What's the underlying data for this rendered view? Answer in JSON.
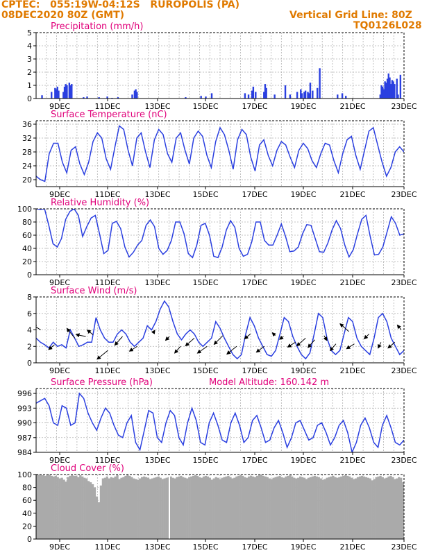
{
  "header": {
    "line1_left": "CPTEC:   055:19W-04:12S   RUROPOLIS (PA)",
    "line2_left": "08DEC2020 80Z (GMT)",
    "line1_right": "Vertical Grid Line: 80Z",
    "line2_right": "TQ0126L028"
  },
  "colors": {
    "header": "#e07a00",
    "title": "#e0007a",
    "series": "#2a3fe0",
    "cloud": "#aaaaaa",
    "grid": "#b0b0b0"
  },
  "x_ticks": [
    "9DEC",
    "11DEC",
    "13DEC",
    "15DEC",
    "17DEC",
    "19DEC",
    "21DEC",
    "23DEC"
  ],
  "chart_data": [
    {
      "id": "precip",
      "type": "bar",
      "title": "Precipitation (mm/h)",
      "ylim": [
        0,
        5
      ],
      "yticks": [
        "0",
        "1",
        "2",
        "3",
        "4",
        "5"
      ],
      "x": [
        [
          0.5,
          0.25
        ],
        [
          1.3,
          0.5
        ],
        [
          1.6,
          0.8
        ],
        [
          1.7,
          0.7
        ],
        [
          1.8,
          0.9
        ],
        [
          1.9,
          0.6
        ],
        [
          2.3,
          0.5
        ],
        [
          2.4,
          0.9
        ],
        [
          2.5,
          1.1
        ],
        [
          2.6,
          1.0
        ],
        [
          2.8,
          1.2
        ],
        [
          2.9,
          1.0
        ],
        [
          3.0,
          1.1
        ],
        [
          4.0,
          0.1
        ],
        [
          4.3,
          0.15
        ],
        [
          5.3,
          0.1
        ],
        [
          6.0,
          0.15
        ],
        [
          6.4,
          0.05
        ],
        [
          6.9,
          0.1
        ],
        [
          8.1,
          0.3
        ],
        [
          8.3,
          0.6
        ],
        [
          8.4,
          0.7
        ],
        [
          8.5,
          0.5
        ],
        [
          12.6,
          0.1
        ],
        [
          13.9,
          0.2
        ],
        [
          14.3,
          0.15
        ],
        [
          14.8,
          0.4
        ],
        [
          17.6,
          0.4
        ],
        [
          17.9,
          0.3
        ],
        [
          18.2,
          0.6
        ],
        [
          18.3,
          0.9
        ],
        [
          18.5,
          0.5
        ],
        [
          19.2,
          0.5
        ],
        [
          19.3,
          1.1
        ],
        [
          19.4,
          0.8
        ],
        [
          20.1,
          0.3
        ],
        [
          21.0,
          1.0
        ],
        [
          21.4,
          0.3
        ],
        [
          22.0,
          0.5
        ],
        [
          22.3,
          0.7
        ],
        [
          22.4,
          0.4
        ],
        [
          22.6,
          0.5
        ],
        [
          22.7,
          0.6
        ],
        [
          22.9,
          0.5
        ],
        [
          23.0,
          0.4
        ],
        [
          23.1,
          1.2
        ],
        [
          23.3,
          0.6
        ],
        [
          23.7,
          0.8
        ],
        [
          23.9,
          2.3
        ],
        [
          25.4,
          0.3
        ],
        [
          25.8,
          0.4
        ],
        [
          26.1,
          0.2
        ],
        [
          29.0,
          0.3
        ],
        [
          29.1,
          1.0
        ],
        [
          29.2,
          0.9
        ],
        [
          29.3,
          0.7
        ],
        [
          29.4,
          1.3
        ],
        [
          29.5,
          1.2
        ],
        [
          29.6,
          1.5
        ],
        [
          29.7,
          1.9
        ],
        [
          29.8,
          1.6
        ],
        [
          29.9,
          1.1
        ],
        [
          30.0,
          1.4
        ],
        [
          30.1,
          1.3
        ],
        [
          30.2,
          1.1
        ],
        [
          30.4,
          1.5
        ],
        [
          30.5,
          0.3
        ],
        [
          30.7,
          1.8
        ]
      ]
    },
    {
      "id": "temp",
      "type": "line",
      "title": "Surface Temperature (nC)",
      "ylim": [
        18,
        37
      ],
      "yticks": [
        "20",
        "24",
        "28",
        "32",
        "36"
      ],
      "tickvals": [
        20,
        24,
        28,
        32,
        36
      ],
      "values": [
        21.0,
        20.0,
        19.5,
        27.5,
        30.5,
        30.5,
        25.0,
        22.0,
        28.5,
        29.5,
        24.5,
        21.5,
        25.0,
        31.0,
        33.5,
        32.0,
        26.0,
        23.0,
        29.5,
        35.5,
        34.5,
        28.5,
        24.0,
        32.0,
        33.5,
        28.0,
        23.5,
        31.5,
        34.5,
        33.0,
        27.5,
        25.0,
        32.0,
        33.5,
        28.5,
        24.5,
        32.0,
        34.0,
        32.5,
        27.0,
        23.5,
        31.0,
        35.0,
        33.0,
        28.5,
        23.0,
        31.5,
        34.5,
        33.0,
        26.5,
        22.5,
        30.0,
        31.5,
        27.0,
        24.0,
        28.5,
        31.0,
        30.0,
        26.5,
        23.5,
        28.5,
        30.5,
        29.0,
        25.5,
        23.5,
        27.5,
        30.5,
        30.0,
        25.5,
        22.0,
        27.5,
        31.5,
        32.5,
        27.0,
        23.0,
        28.5,
        34.0,
        35.0,
        30.0,
        25.0,
        21.0,
        23.5,
        28.0,
        29.5,
        28.0
      ]
    },
    {
      "id": "rh",
      "type": "line",
      "title": "Relative Humidity (%)",
      "ylim": [
        0,
        100
      ],
      "yticks": [
        "0",
        "20",
        "40",
        "60",
        "80",
        "100"
      ],
      "tickvals": [
        0,
        20,
        40,
        60,
        80,
        100
      ],
      "values": [
        100,
        99,
        100,
        75,
        47,
        42,
        55,
        84,
        96,
        100,
        90,
        58,
        73,
        86,
        90,
        62,
        32,
        37,
        78,
        81,
        70,
        42,
        27,
        34,
        45,
        52,
        75,
        83,
        73,
        40,
        31,
        37,
        52,
        80,
        80,
        62,
        32,
        26,
        45,
        75,
        78,
        60,
        28,
        26,
        42,
        68,
        82,
        72,
        40,
        28,
        31,
        50,
        80,
        80,
        52,
        45,
        45,
        60,
        77,
        58,
        35,
        36,
        42,
        62,
        76,
        75,
        55,
        35,
        34,
        48,
        68,
        82,
        70,
        45,
        27,
        38,
        62,
        84,
        90,
        58,
        30,
        31,
        42,
        65,
        88,
        78,
        60,
        62
      ]
    },
    {
      "id": "wind",
      "type": "line",
      "title": "Surface Wind (m/s)",
      "ylim": [
        0,
        8
      ],
      "yticks": [
        "0",
        "2",
        "4",
        "6",
        "8"
      ],
      "tickvals": [
        0,
        2,
        4,
        6,
        8
      ],
      "values": [
        3.0,
        2.5,
        2.2,
        1.8,
        2.5,
        2.0,
        2.2,
        1.8,
        4.0,
        3.0,
        2.0,
        2.2,
        2.5,
        2.5,
        5.5,
        4.0,
        3.0,
        2.5,
        2.5,
        3.5,
        4.0,
        3.5,
        2.5,
        2.0,
        2.5,
        3.0,
        4.5,
        4.0,
        5.0,
        6.5,
        7.5,
        6.8,
        5.0,
        3.5,
        2.8,
        3.5,
        4.0,
        3.5,
        2.5,
        2.0,
        2.5,
        3.0,
        5.0,
        4.2,
        3.0,
        2.0,
        1.0,
        0.5,
        1.0,
        3.5,
        5.5,
        4.5,
        3.0,
        2.0,
        1.0,
        0.8,
        1.5,
        3.5,
        5.5,
        5.0,
        3.2,
        2.0,
        1.0,
        0.5,
        1.2,
        3.5,
        6.0,
        5.5,
        3.0,
        1.5,
        1.0,
        1.5,
        3.5,
        5.5,
        5.0,
        3.0,
        2.0,
        1.5,
        1.0,
        3.0,
        5.5,
        6.0,
        5.0,
        3.0,
        2.0,
        1.0,
        1.5
      ],
      "arrows": [
        [
          0.5,
          4.0,
          -0.8,
          0.5
        ],
        [
          2.0,
          2.2,
          -0.6,
          -0.5
        ],
        [
          4.2,
          3.0,
          -0.8,
          1.0
        ],
        [
          5.4,
          3.2,
          -1.0,
          0.2
        ],
        [
          6.2,
          3.4,
          -0.6,
          0.5
        ],
        [
          7.8,
          1.5,
          -1.1,
          -0.9
        ],
        [
          9.4,
          3.2,
          -0.8,
          -0.9
        ],
        [
          11.0,
          2.0,
          -0.8,
          -0.5
        ],
        [
          12.7,
          3.6,
          0.2,
          0.3
        ],
        [
          14.5,
          3.2,
          -0.4,
          -0.4
        ],
        [
          15.7,
          2.0,
          -0.6,
          -0.7
        ],
        [
          17.2,
          3.0,
          -0.9,
          -0.8
        ],
        [
          18.6,
          2.0,
          -1.0,
          -0.7
        ],
        [
          20.3,
          3.3,
          -0.9,
          -0.9
        ],
        [
          21.8,
          2.0,
          -1.0,
          -0.8
        ],
        [
          23.3,
          3.5,
          -0.6,
          -0.5
        ],
        [
          24.8,
          2.0,
          -0.8,
          -0.6
        ],
        [
          26.0,
          3.3,
          -0.3,
          0.3
        ],
        [
          26.9,
          3.2,
          -0.4,
          -0.3
        ],
        [
          28.2,
          2.5,
          -0.8,
          -0.5
        ],
        [
          29.3,
          3.0,
          -0.9,
          -0.8
        ],
        [
          30.3,
          2.8,
          -0.7,
          -0.8
        ],
        [
          31.3,
          3.3,
          0.3,
          -0.5
        ],
        [
          32.6,
          2.3,
          -0.6,
          -0.7
        ],
        [
          34.0,
          3.8,
          -0.9,
          0.8
        ],
        [
          34.6,
          2.3,
          -0.8,
          -0.5
        ],
        [
          36.2,
          3.5,
          -0.5,
          -0.5
        ],
        [
          37.5,
          2.5,
          -0.3,
          -0.6
        ],
        [
          39.0,
          2.5,
          -0.7,
          -0.6
        ],
        [
          39.7,
          4.0,
          -0.4,
          0.5
        ]
      ]
    },
    {
      "id": "pres",
      "type": "line",
      "title": "Surface Pressure (hPa)",
      "subtitle": "Model Altitude: 160.142 m",
      "ylim": [
        984,
        997
      ],
      "yticks": [
        "984",
        "987",
        "990",
        "993",
        "996"
      ],
      "tickvals": [
        984,
        987,
        990,
        993,
        996
      ],
      "values": [
        994.0,
        994.5,
        995.0,
        993.5,
        990.0,
        989.5,
        993.5,
        993.0,
        989.5,
        990.0,
        996.0,
        995.0,
        992.0,
        990.0,
        988.5,
        991.0,
        993.0,
        992.0,
        989.5,
        987.5,
        987.0,
        990.0,
        991.5,
        986.0,
        984.5,
        988.5,
        992.5,
        992.0,
        987.0,
        986.0,
        990.0,
        992.5,
        991.5,
        987.0,
        985.5,
        990.0,
        993.0,
        990.5,
        986.0,
        985.5,
        990.0,
        992.0,
        989.5,
        986.5,
        986.0,
        990.0,
        992.0,
        989.5,
        986.0,
        987.0,
        990.5,
        991.5,
        989.0,
        986.0,
        986.5,
        989.0,
        990.5,
        988.0,
        985.0,
        987.0,
        990.0,
        990.5,
        988.5,
        986.5,
        987.0,
        989.5,
        990.0,
        988.0,
        985.5,
        987.0,
        989.5,
        990.5,
        988.0,
        984.0,
        986.0,
        989.5,
        991.0,
        989.0,
        986.0,
        985.0,
        989.5,
        991.5,
        989.0,
        986.0,
        985.5,
        986.5
      ]
    },
    {
      "id": "cloud",
      "type": "area",
      "title": "Cloud Cover (%)",
      "ylim": [
        0,
        100
      ],
      "yticks": [
        "0",
        "20",
        "40",
        "60",
        "80",
        "100"
      ],
      "tickvals": [
        0,
        20,
        40,
        60,
        80,
        100
      ],
      "values": [
        100,
        100,
        99,
        99,
        98,
        99,
        100,
        98,
        97,
        98,
        96,
        94,
        95,
        92,
        89,
        96,
        98,
        99,
        98,
        98,
        96,
        99,
        97,
        95,
        94,
        90,
        88,
        85,
        80,
        66,
        57,
        83,
        94,
        95,
        97,
        94,
        96,
        95,
        97,
        99,
        93,
        95,
        96,
        98,
        100,
        98,
        96,
        94,
        93,
        92,
        94,
        96,
        97,
        96,
        95,
        93,
        94,
        95,
        96,
        97,
        95,
        93,
        94,
        95,
        96,
        97,
        95,
        94,
        96,
        97,
        98,
        96,
        95,
        94,
        96,
        97,
        98,
        99,
        98,
        96,
        95,
        97,
        98,
        97,
        95,
        92,
        94,
        96,
        95,
        93,
        95,
        96,
        97,
        98,
        96,
        94,
        95,
        97,
        98,
        99,
        98,
        96,
        95,
        97,
        98,
        97,
        96,
        98,
        99,
        100,
        98,
        97,
        96,
        94,
        93,
        95,
        96,
        97,
        98,
        96,
        95,
        97,
        98,
        99,
        97,
        95,
        94,
        95,
        97,
        96,
        95,
        93,
        95,
        96,
        97,
        98,
        97,
        96,
        94,
        92,
        93,
        95,
        96,
        97,
        98,
        96,
        95,
        96,
        97,
        98,
        99,
        98,
        97,
        95,
        93,
        94,
        96,
        97,
        98,
        97,
        96,
        95,
        94,
        91,
        93,
        96,
        97,
        98,
        96,
        94,
        95,
        97,
        98,
        96,
        93,
        94,
        96,
        95,
        88
      ]
    }
  ]
}
